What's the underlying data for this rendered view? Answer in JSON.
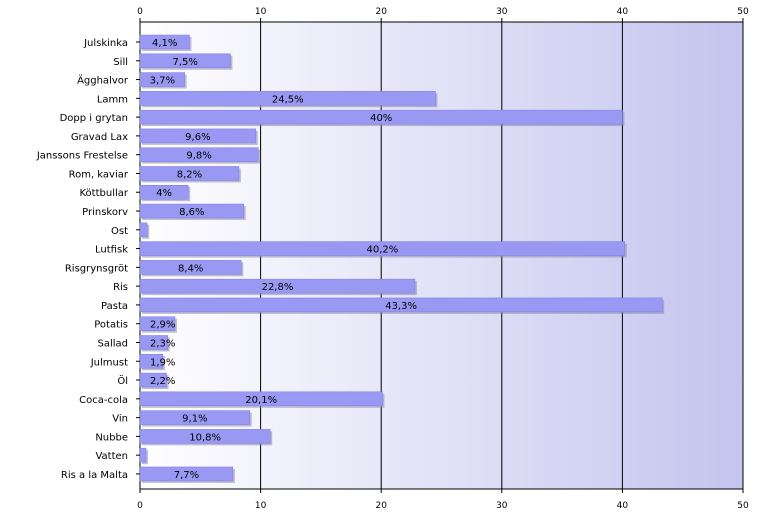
{
  "chart_data": {
    "type": "bar",
    "orientation": "horizontal",
    "title": "",
    "xlabel": "",
    "ylabel": "",
    "xlim": [
      0,
      50
    ],
    "ticks": [
      0,
      10,
      20,
      30,
      40,
      50
    ],
    "tick_labels_top": true,
    "tick_labels_bottom": true,
    "grid": true,
    "legend": "none",
    "colors": {
      "plot_background_left": "#ffffff",
      "plot_background_right": "#c4c4ef",
      "bar_fill": "#9999f3",
      "bar_edge": "#7d7de0",
      "bar_shadow": "#8a8ab0",
      "grid": "#000000"
    },
    "categories": [
      "Julskinka",
      "Sill",
      "Ägghalvor",
      "Lamm",
      "Dopp i grytan",
      "Gravad Lax",
      "Janssons Frestelse",
      "Rom, kaviar",
      "Köttbullar",
      "Prinskorv",
      "Ost",
      "Lutfisk",
      "Risgrynsgröt",
      "Ris",
      "Pasta",
      "Potatis",
      "Sallad",
      "Julmust",
      "Öl",
      "Coca-cola",
      "Vin",
      "Nubbe",
      "Vatten",
      "Ris a la Malta"
    ],
    "values": [
      4.1,
      7.5,
      3.7,
      24.5,
      40,
      9.6,
      9.8,
      8.2,
      4,
      8.6,
      0.6,
      40.2,
      8.4,
      22.8,
      43.3,
      2.9,
      2.3,
      1.9,
      2.2,
      20.1,
      9.1,
      10.8,
      0.5,
      7.7
    ],
    "labels": [
      "4,1%",
      "7,5%",
      "3,7%",
      "24,5%",
      "40%",
      "9,6%",
      "9,8%",
      "8,2%",
      "4%",
      "8,6%",
      "",
      "40,2%",
      "8,4%",
      "22,8%",
      "43,3%",
      "2,9%",
      "2,3%",
      "1,9%",
      "2,2%",
      "20,1%",
      "9,1%",
      "10,8%",
      "",
      "7,7%"
    ]
  }
}
